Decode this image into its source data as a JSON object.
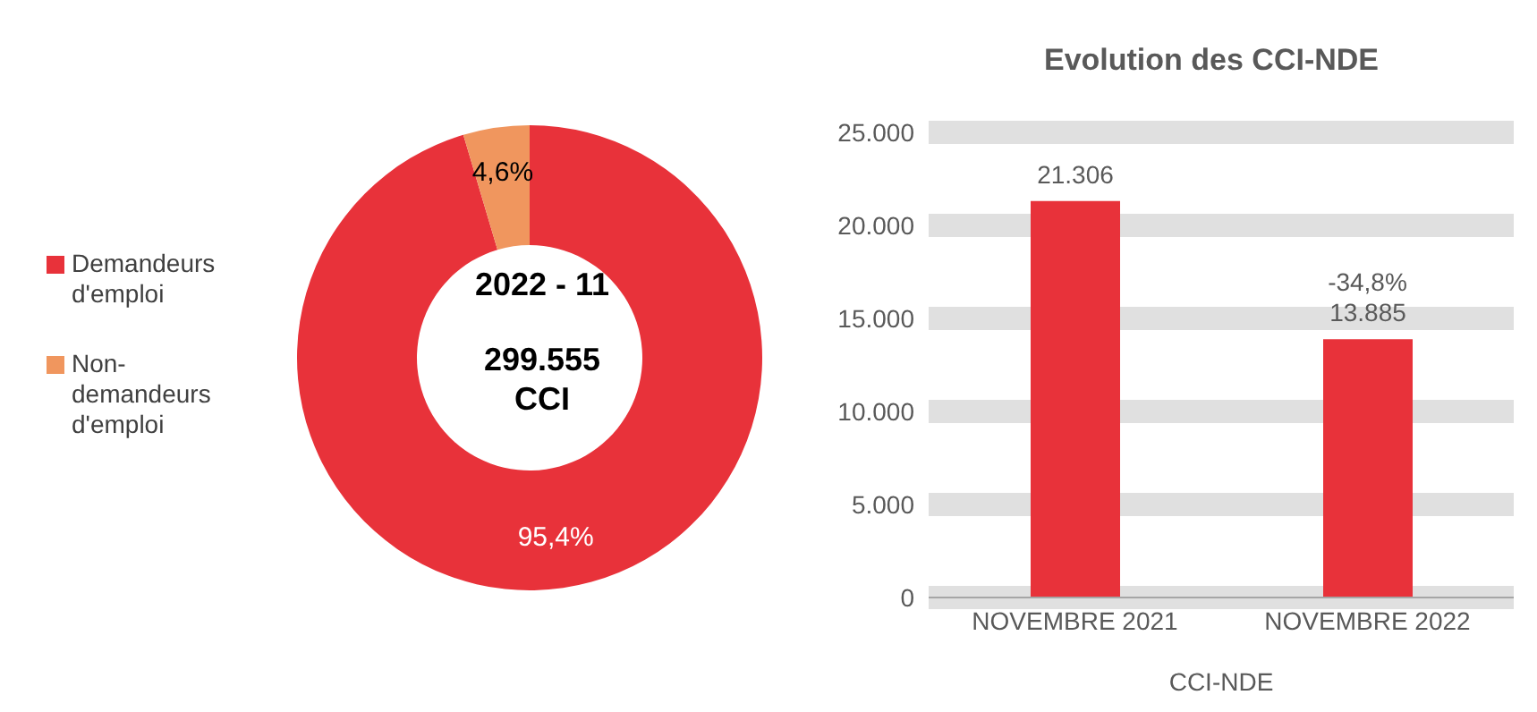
{
  "chart_data": [
    {
      "type": "donut",
      "categories": [
        "Demandeurs d'emploi",
        "Non-demandeurs d'emploi"
      ],
      "values": [
        95.4,
        4.6
      ],
      "colors": [
        "#e8323a",
        "#f0965e"
      ],
      "value_labels": [
        "95,4%",
        "4,6%"
      ],
      "legend": "left",
      "annotations": [
        "2022 - 11",
        "299.555 CCI"
      ]
    },
    {
      "type": "bar",
      "title": "Evolution des CCI-NDE",
      "xlabel": "CCI-NDE",
      "categories": [
        "NOVEMBRE 2021",
        "NOVEMBRE 2022"
      ],
      "values": [
        21306,
        13885
      ],
      "color": "#e8323a",
      "value_labels": [
        "21.306",
        "13.885"
      ],
      "ylim": [
        0,
        25000
      ],
      "yticks": [
        {
          "value": 0,
          "label": "0"
        },
        {
          "value": 5000,
          "label": "5.000"
        },
        {
          "value": 10000,
          "label": "10.000"
        },
        {
          "value": 15000,
          "label": "15.000"
        },
        {
          "value": 20000,
          "label": "20.000"
        },
        {
          "value": 25000,
          "label": "25.000"
        }
      ],
      "grid": "y",
      "annotations": [
        {
          "text": "-34,8%",
          "x": "NOVEMBRE 2022",
          "y": 13885
        }
      ]
    }
  ]
}
